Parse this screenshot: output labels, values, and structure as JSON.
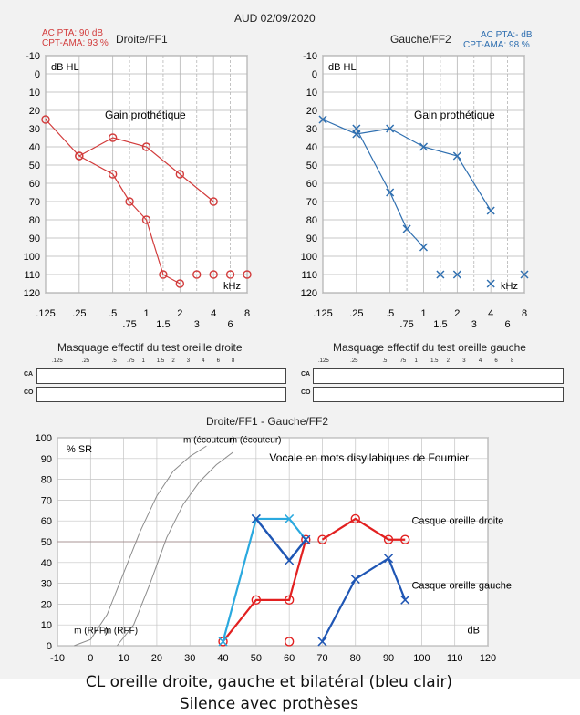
{
  "header": {
    "date": "AUD 02/09/2020"
  },
  "colors": {
    "right": "#d23c3c",
    "left": "#2f6fb0",
    "bilateral": "#2aa9df",
    "red_speech": "#e22020",
    "blue_speech": "#1f56b4",
    "grid": "#999999"
  },
  "chart_data": [
    {
      "type": "scatter",
      "title": "Droite/FF1",
      "stats": [
        "AC PTA: 90 dB",
        "CPT-AMA: 93 %"
      ],
      "unit_label": "dB HL",
      "annotation": "Gain prothétique",
      "x_unit": "kHz",
      "x_ticks": [
        ".125",
        ".25",
        ".5",
        ".75",
        "1",
        "1.5",
        "2",
        "3",
        "4",
        "6",
        "8"
      ],
      "ylim": [
        -10,
        120
      ],
      "y_ticks": [
        -10,
        0,
        10,
        20,
        30,
        40,
        50,
        60,
        70,
        80,
        90,
        100,
        110,
        120
      ],
      "marker": "circle",
      "series": [
        {
          "x": [
            ".125",
            ".25",
            ".5",
            "1",
            "2",
            "4"
          ],
          "values": [
            25,
            45,
            35,
            40,
            55,
            70
          ]
        },
        {
          "x": [
            ".25",
            ".5",
            ".75",
            "1",
            "1.5",
            "2"
          ],
          "values": [
            45,
            55,
            70,
            80,
            110,
            115
          ]
        }
      ],
      "unconnected": {
        "x": [
          "3",
          "4",
          "6",
          "8"
        ],
        "values": [
          110,
          110,
          110,
          110
        ]
      }
    },
    {
      "type": "scatter",
      "title": "Gauche/FF2",
      "stats": [
        "AC PTA:- dB",
        "CPT-AMA: 98 %"
      ],
      "unit_label": "dB HL",
      "annotation": "Gain prothétique",
      "x_unit": "kHz",
      "x_ticks": [
        ".125",
        ".25",
        ".5",
        ".75",
        "1",
        "1.5",
        "2",
        "3",
        "4",
        "6",
        "8"
      ],
      "ylim": [
        -10,
        120
      ],
      "y_ticks": [
        -10,
        0,
        10,
        20,
        30,
        40,
        50,
        60,
        70,
        80,
        90,
        100,
        110,
        120
      ],
      "marker": "cross",
      "series": [
        {
          "x": [
            ".125",
            ".25",
            ".5",
            "1",
            "2",
            "4"
          ],
          "values": [
            25,
            33,
            30,
            40,
            45,
            75
          ]
        },
        {
          "x": [
            ".25",
            ".5",
            ".75",
            "1"
          ],
          "values": [
            30,
            65,
            85,
            95
          ]
        }
      ],
      "unconnected": {
        "x": [
          "1.5",
          "2",
          "4",
          "8"
        ],
        "values": [
          110,
          110,
          115,
          110
        ]
      }
    },
    {
      "type": "line",
      "title": "Droite/FF1 - Gauche/FF2",
      "ylabel": "% SR",
      "xlabel": "dB",
      "xlim": [
        -10,
        120
      ],
      "ylim": [
        0,
        100
      ],
      "x_ticks": [
        -10,
        0,
        10,
        20,
        30,
        40,
        50,
        60,
        70,
        80,
        90,
        100,
        110,
        120
      ],
      "y_ticks": [
        0,
        10,
        20,
        30,
        40,
        50,
        60,
        70,
        80,
        90,
        100
      ],
      "curve_labels": [
        "m (écouteur)",
        "m (écouteur)",
        "m (RFF)",
        "m (RFF)"
      ],
      "test_label": "Vocale en mots disyllabiques de Fournier",
      "series": [
        {
          "name": "Casque oreille droite",
          "marker": "circle",
          "x": [
            70,
            80,
            90,
            95
          ],
          "values": [
            51,
            61,
            51,
            51
          ]
        },
        {
          "name": "Casque oreille gauche",
          "marker": "cross",
          "x": [
            70,
            80,
            90,
            95
          ],
          "values": [
            2,
            32,
            42,
            22
          ]
        },
        {
          "marker": "circle",
          "x": [
            40,
            50,
            60,
            65
          ],
          "values": [
            2,
            22,
            22,
            51
          ]
        },
        {
          "marker": "cross",
          "x": [
            40,
            50,
            60,
            65
          ],
          "values": [
            2,
            61,
            61,
            51
          ]
        },
        {
          "marker": "cross",
          "x": [
            50,
            60,
            65
          ],
          "values": [
            61,
            41,
            51
          ]
        },
        {
          "marker": "circle",
          "x": [
            60
          ],
          "values": [
            2
          ]
        }
      ]
    }
  ],
  "masking": {
    "right_title": "Masquage effectif du test oreille droite",
    "left_title": "Masquage effectif du test oreille gauche",
    "row_labels": [
      "CA",
      "CO"
    ],
    "freqs": [
      ".125",
      ".25",
      ".5",
      ".75",
      "1",
      "1.5",
      "2",
      "3",
      "4",
      "6",
      "8"
    ]
  },
  "caption": {
    "line1": "CL oreille droite, gauche et bilatéral (bleu clair)",
    "line2": "Silence avec prothèses"
  }
}
